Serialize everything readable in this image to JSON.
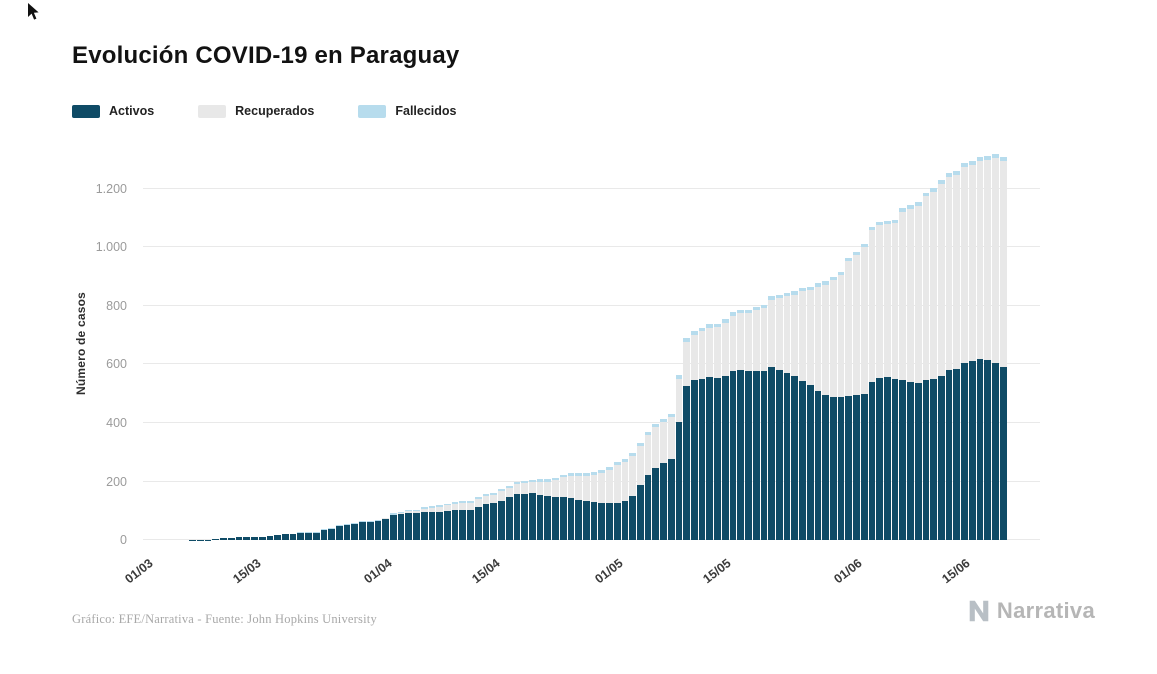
{
  "header": {
    "title": "Evolución COVID-19 en Paraguay"
  },
  "legend": [
    {
      "label": "Activos",
      "color": "#0f4b66"
    },
    {
      "label": "Recuperados",
      "color": "#e8e8e8"
    },
    {
      "label": "Fallecidos",
      "color": "#b7dced"
    }
  ],
  "icons": {
    "cursor": "arrow-pointer",
    "brand_mark": "stylized-N"
  },
  "footer": {
    "credit": "Gráfico: EFE/Narrativa - Fuente: John Hopkins University",
    "brand": "Narrativa"
  },
  "chart_data": {
    "type": "bar",
    "stacked": true,
    "title": "Evolución COVID-19 en Paraguay",
    "xlabel": "",
    "ylabel": "Número de casos",
    "ylim": [
      0,
      1340
    ],
    "grid": "horizontal",
    "legend_position": "top-left",
    "ytick_values": [
      0,
      200,
      400,
      600,
      800,
      1000,
      1200
    ],
    "ytick_labels": [
      "0",
      "200",
      "400",
      "600",
      "800",
      "1.000",
      "1.200"
    ],
    "xticks": [
      {
        "label": "01/03",
        "index": 0
      },
      {
        "label": "15/03",
        "index": 14
      },
      {
        "label": "01/04",
        "index": 31
      },
      {
        "label": "15/04",
        "index": 45
      },
      {
        "label": "01/05",
        "index": 61
      },
      {
        "label": "15/05",
        "index": 75
      },
      {
        "label": "01/06",
        "index": 92
      },
      {
        "label": "15/06",
        "index": 106
      }
    ],
    "x": [
      "01/03",
      "02/03",
      "03/03",
      "04/03",
      "05/03",
      "06/03",
      "07/03",
      "08/03",
      "09/03",
      "10/03",
      "11/03",
      "12/03",
      "13/03",
      "14/03",
      "15/03",
      "16/03",
      "17/03",
      "18/03",
      "19/03",
      "20/03",
      "21/03",
      "22/03",
      "23/03",
      "24/03",
      "25/03",
      "26/03",
      "27/03",
      "28/03",
      "29/03",
      "30/03",
      "31/03",
      "01/04",
      "02/04",
      "03/04",
      "04/04",
      "05/04",
      "06/04",
      "07/04",
      "08/04",
      "09/04",
      "10/04",
      "11/04",
      "12/04",
      "13/04",
      "14/04",
      "15/04",
      "16/04",
      "17/04",
      "18/04",
      "19/04",
      "20/04",
      "21/04",
      "22/04",
      "23/04",
      "24/04",
      "25/04",
      "26/04",
      "27/04",
      "28/04",
      "29/04",
      "30/04",
      "01/05",
      "02/05",
      "03/05",
      "04/05",
      "05/05",
      "06/05",
      "07/05",
      "08/05",
      "09/05",
      "10/05",
      "11/05",
      "12/05",
      "13/05",
      "14/05",
      "15/05",
      "16/05",
      "17/05",
      "18/05",
      "19/05",
      "20/05",
      "21/05",
      "22/05",
      "23/05",
      "24/05",
      "25/05",
      "26/05",
      "27/05",
      "28/05",
      "29/05",
      "30/05",
      "31/05",
      "01/06",
      "02/06",
      "03/06",
      "04/06",
      "05/06",
      "06/06",
      "07/06",
      "08/06",
      "09/06",
      "10/06",
      "11/06",
      "12/06",
      "13/06",
      "14/06",
      "15/06",
      "16/06",
      "17/06",
      "18/06",
      "19/06",
      "20/06"
    ],
    "series": [
      {
        "name": "Activos",
        "color": "#0f4b66",
        "values": [
          0,
          0,
          0,
          0,
          0,
          0,
          1,
          1,
          1,
          5,
          6,
          7,
          9,
          9,
          9,
          11,
          15,
          18,
          22,
          21,
          25,
          25,
          25,
          34,
          38,
          49,
          52,
          55,
          60,
          61,
          65,
          73,
          85,
          88,
          94,
          92,
          95,
          96,
          97,
          100,
          102,
          104,
          103,
          114,
          124,
          125,
          135,
          146,
          157,
          159,
          160,
          155,
          150,
          148,
          147,
          143,
          137,
          132,
          130,
          128,
          126,
          128,
          133,
          150,
          187,
          222,
          246,
          262,
          276,
          404,
          527,
          547,
          552,
          558,
          554,
          561,
          577,
          580,
          577,
          577,
          578,
          590,
          580,
          570,
          560,
          545,
          530,
          510,
          495,
          490,
          488,
          493,
          495,
          498,
          540,
          555,
          556,
          550,
          548,
          540,
          537,
          548,
          552,
          560,
          581,
          586,
          605,
          612,
          620,
          615,
          605,
          592
        ]
      },
      {
        "name": "Recuperados",
        "color": "#e8e8e8",
        "values": [
          0,
          0,
          0,
          0,
          0,
          0,
          0,
          0,
          0,
          0,
          0,
          0,
          0,
          0,
          0,
          0,
          0,
          0,
          0,
          0,
          0,
          0,
          0,
          0,
          0,
          0,
          1,
          1,
          1,
          1,
          1,
          1,
          2,
          3,
          5,
          7,
          12,
          13,
          16,
          18,
          21,
          23,
          24,
          26,
          28,
          29,
          31,
          32,
          34,
          35,
          38,
          44,
          49,
          56,
          67,
          76,
          82,
          87,
          92,
          101,
          113,
          128,
          135,
          136,
          136,
          138,
          140,
          143,
          145,
          148,
          151,
          155,
          161,
          168,
          175,
          182,
          190,
          195,
          200,
          208,
          215,
          232,
          247,
          265,
          279,
          306,
          324,
          356,
          378,
          399,
          418,
          460,
          480,
          504,
          519,
          521,
          523,
          533,
          575,
          593,
          606,
          627,
          638,
          658,
          660,
          662,
          671,
          671,
          675,
          685,
          700,
          705
        ]
      },
      {
        "name": "Fallecidos",
        "color": "#b7dced",
        "values": [
          0,
          0,
          0,
          0,
          0,
          0,
          0,
          0,
          0,
          0,
          0,
          0,
          0,
          0,
          0,
          0,
          0,
          0,
          0,
          1,
          2,
          2,
          2,
          3,
          3,
          3,
          3,
          3,
          3,
          3,
          3,
          3,
          5,
          5,
          5,
          5,
          6,
          6,
          6,
          6,
          6,
          6,
          7,
          7,
          7,
          7,
          8,
          8,
          8,
          8,
          8,
          9,
          9,
          9,
          9,
          9,
          9,
          9,
          9,
          10,
          10,
          10,
          10,
          10,
          10,
          10,
          10,
          10,
          10,
          11,
          11,
          11,
          11,
          11,
          11,
          11,
          11,
          11,
          11,
          11,
          11,
          11,
          11,
          11,
          11,
          11,
          11,
          11,
          11,
          11,
          11,
          11,
          11,
          11,
          11,
          11,
          11,
          12,
          12,
          12,
          12,
          12,
          12,
          12,
          13,
          13,
          13,
          13,
          13,
          13,
          13,
          13
        ]
      }
    ]
  }
}
